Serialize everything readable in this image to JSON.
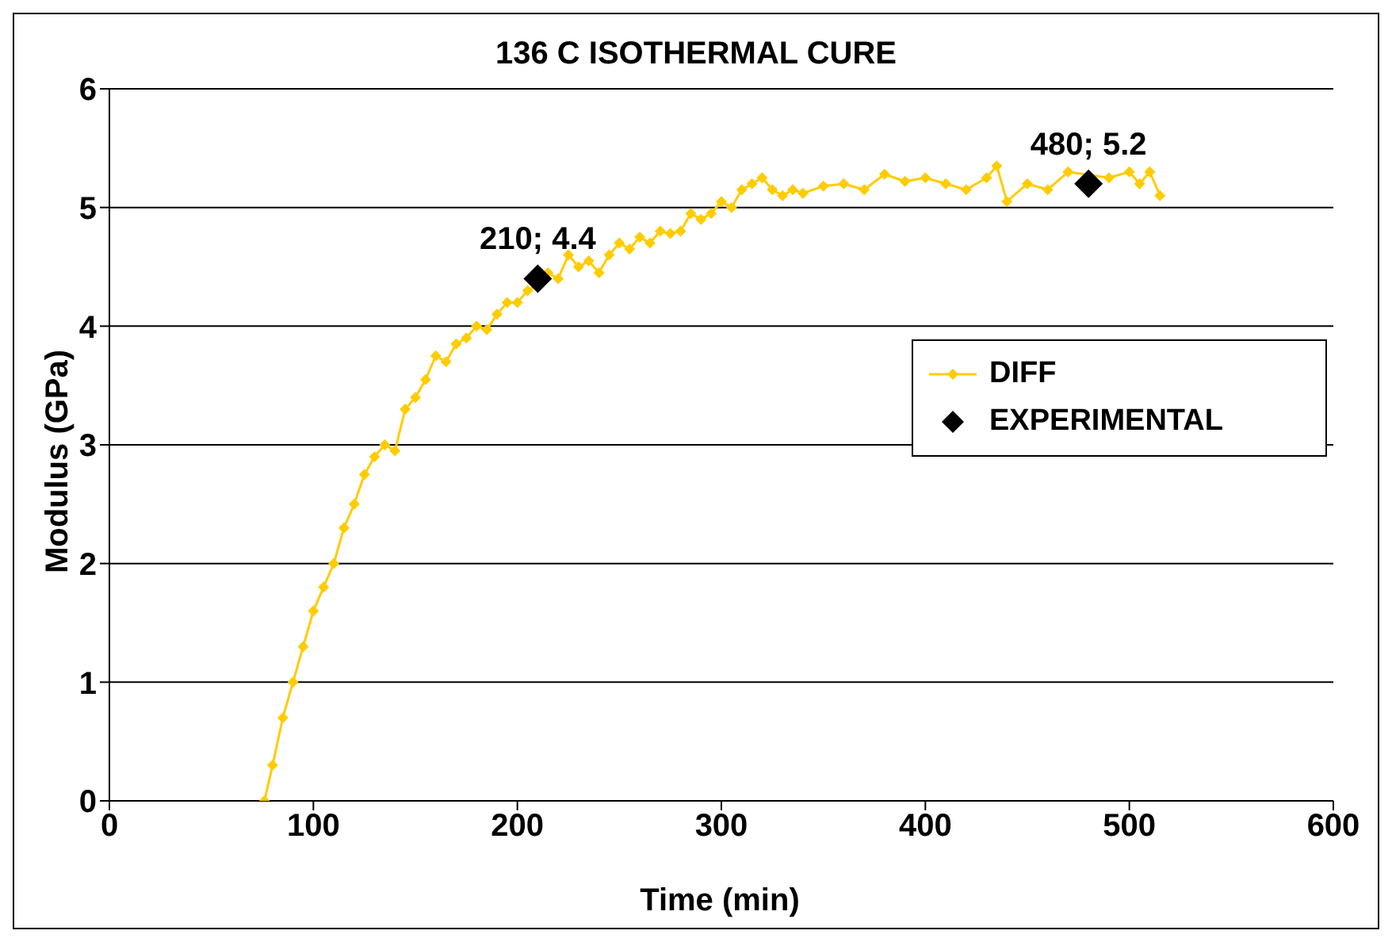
{
  "chart_data": {
    "type": "line",
    "title": "136 C ISOTHERMAL CURE",
    "xlabel": "Time (min)",
    "ylabel": "Modulus (GPa)",
    "xlim": [
      0,
      600
    ],
    "xticks": [
      0,
      100,
      200,
      300,
      400,
      500,
      600
    ],
    "ylim": [
      0,
      6
    ],
    "yticks": [
      0,
      1,
      2,
      3,
      4,
      5,
      6
    ],
    "grid": "y",
    "legend": "right",
    "marker": "diamond",
    "series": [
      {
        "name": "DIFF",
        "color": "#ffcc00",
        "x": [
          76,
          80,
          85,
          90,
          95,
          100,
          105,
          110,
          115,
          120,
          125,
          130,
          135,
          140,
          145,
          150,
          155,
          160,
          165,
          170,
          175,
          180,
          185,
          190,
          195,
          200,
          205,
          210,
          215,
          220,
          225,
          230,
          235,
          240,
          245,
          250,
          255,
          260,
          265,
          270,
          275,
          280,
          285,
          290,
          295,
          300,
          305,
          310,
          315,
          320,
          325,
          330,
          335,
          340,
          350,
          360,
          370,
          380,
          390,
          400,
          410,
          420,
          430,
          435,
          440,
          450,
          460,
          470,
          490,
          500,
          505,
          510,
          515
        ],
        "values": [
          0,
          0.3,
          0.7,
          1.0,
          1.3,
          1.6,
          1.8,
          2.0,
          2.3,
          2.5,
          2.75,
          2.9,
          3.0,
          2.95,
          3.3,
          3.4,
          3.55,
          3.75,
          3.7,
          3.85,
          3.9,
          4.0,
          3.97,
          4.1,
          4.2,
          4.2,
          4.3,
          4.35,
          4.45,
          4.4,
          4.6,
          4.5,
          4.55,
          4.45,
          4.6,
          4.7,
          4.65,
          4.75,
          4.7,
          4.8,
          4.78,
          4.8,
          4.95,
          4.9,
          4.95,
          5.05,
          5.0,
          5.15,
          5.2,
          5.25,
          5.15,
          5.1,
          5.15,
          5.12,
          5.18,
          5.2,
          5.15,
          5.28,
          5.22,
          5.25,
          5.2,
          5.15,
          5.25,
          5.35,
          5.05,
          5.2,
          5.15,
          5.3,
          5.25,
          5.3,
          5.2,
          5.3,
          5.1
        ]
      },
      {
        "name": "EXPERIMENTAL",
        "type": "scatter",
        "color": "#000000",
        "x": [
          210,
          480
        ],
        "values": [
          4.4,
          5.2
        ],
        "value_labels": [
          "210; 4.4",
          "480; 5.2"
        ]
      }
    ]
  }
}
